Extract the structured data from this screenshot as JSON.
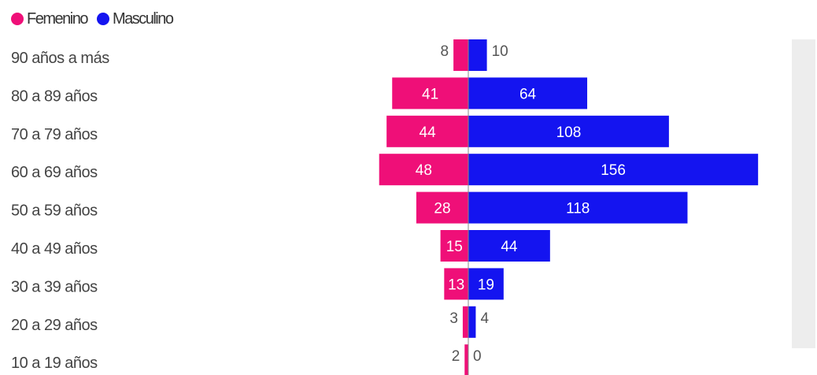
{
  "legend": {
    "female_label": "Femenino",
    "male_label": "Masculino"
  },
  "colors": {
    "female": "#ef0f78",
    "male": "#1414f0",
    "scroll_track": "#ededed",
    "axis": "#888888"
  },
  "chart_data": {
    "type": "bar",
    "orientation": "horizontal-diverging",
    "categories": [
      "90 años a más",
      "80 a 89 años",
      "70 a 79 años",
      "60 a 69 años",
      "50 a 59 años",
      "40 a 49 años",
      "30 a 39 años",
      "20 a 29 años",
      "10 a 19 años"
    ],
    "series": [
      {
        "name": "Femenino",
        "values": [
          8,
          41,
          44,
          48,
          28,
          15,
          13,
          3,
          2
        ]
      },
      {
        "name": "Masculino",
        "values": [
          10,
          64,
          108,
          156,
          118,
          44,
          19,
          4,
          0
        ]
      }
    ],
    "title": "",
    "xlabel": "",
    "ylabel": "",
    "legend_position": "top-left",
    "grid": false
  }
}
